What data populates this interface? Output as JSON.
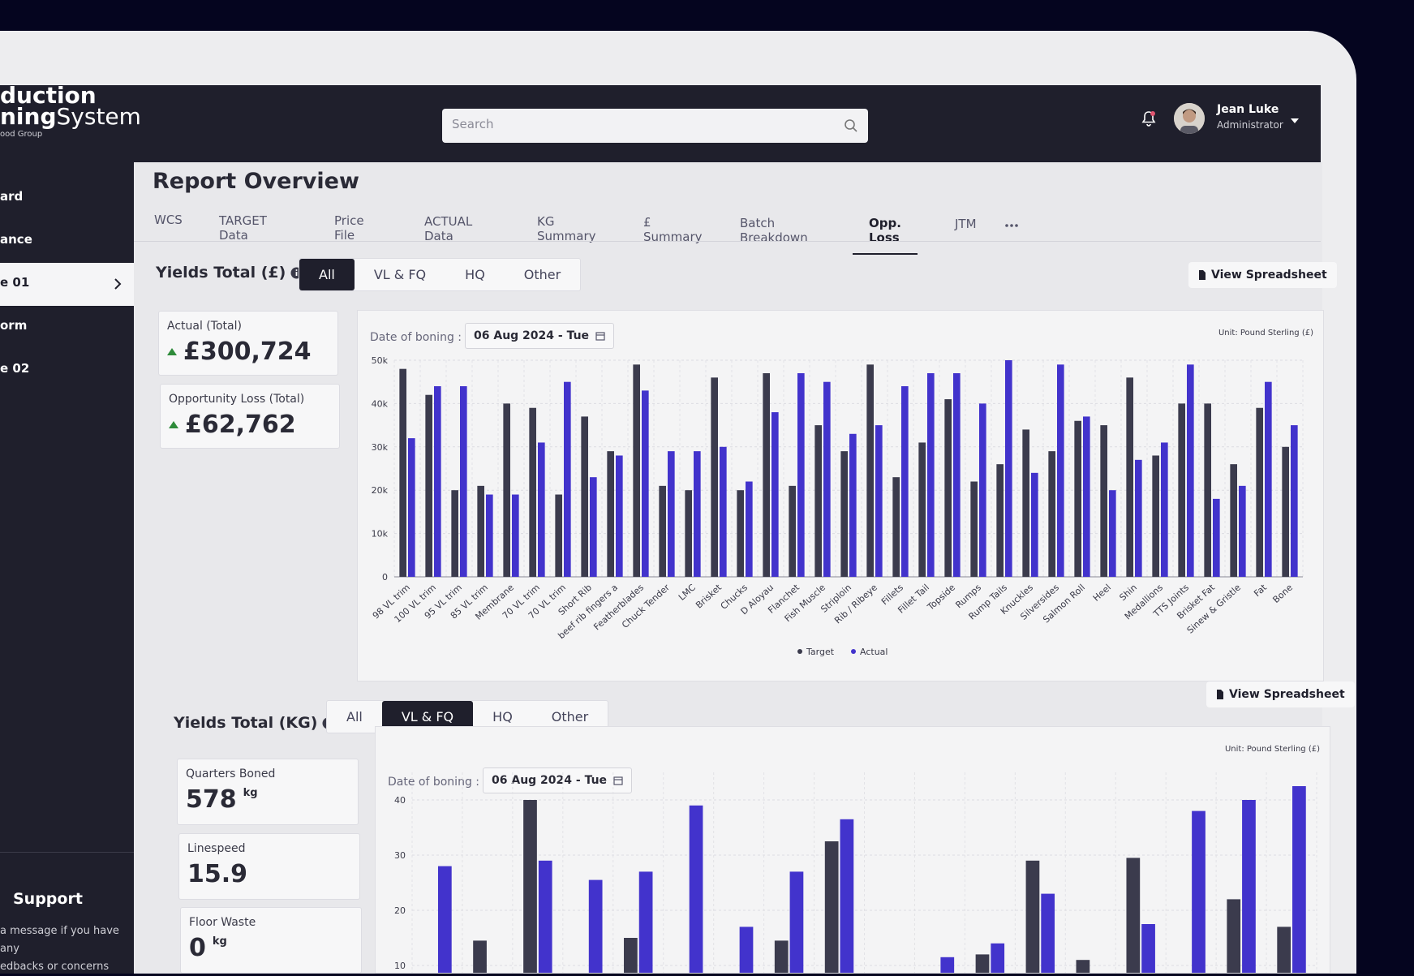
{
  "brand": {
    "line1": "duction",
    "line2a": "ning",
    "line2b": "System",
    "line3": "ood Group"
  },
  "search_placeholder": "Search",
  "user": {
    "name": "Jean Luke",
    "role": "Administrator"
  },
  "sidebar": {
    "items": [
      "ard",
      "ance",
      "e 01",
      "orm",
      "e 02"
    ],
    "active": 2
  },
  "support": {
    "title": "Support",
    "lines": [
      "a message if you have any",
      "edbacks or concerns"
    ]
  },
  "page_title": "Report Overview",
  "tabs": {
    "items": [
      "WCS",
      "TARGET Data",
      "Price File",
      "ACTUAL Data",
      "KG Summary",
      "£ Summary",
      "Batch Breakdown",
      "Opp. Loss",
      "JTM"
    ],
    "active": 7
  },
  "sections": [
    {
      "title": "Yields Total (£)",
      "filters": [
        "All",
        "VL & FQ",
        "HQ",
        "Other"
      ],
      "active_filter": 0,
      "button": "View Spreadsheet",
      "cards": [
        {
          "label": "Actual (Total)",
          "value": "£300,724",
          "trend": "up"
        },
        {
          "label": "Opportunity Loss (Total)",
          "value": "£62,762",
          "trend": "up"
        }
      ]
    },
    {
      "title": "Yields Total (KG)",
      "filters": [
        "All",
        "VL & FQ",
        "HQ",
        "Other"
      ],
      "active_filter": 1,
      "button": "View Spreadsheet",
      "cards": [
        {
          "label": "Quarters Boned",
          "value": "578",
          "unit": "kg"
        },
        {
          "label": "Linespeed",
          "value": "15.9"
        },
        {
          "label": "Floor Waste",
          "value": "0",
          "unit": "kg"
        }
      ]
    }
  ],
  "chart_data": [
    {
      "type": "bar",
      "date_label": "Date of boning :",
      "date": "06 Aug 2024 - Tue",
      "unit_label": "Unit: Pound Sterling (£)",
      "categories": [
        "98 VL trim",
        "100 VL trim",
        "95 VL trim",
        "85 VL trim",
        "Membrane",
        "70 VL trim",
        "70 VL trim",
        "Short Rib",
        "beef rib fingers a",
        "Featherblades",
        "Chuck Tender",
        "LMC",
        "Brisket",
        "Chucks",
        "D Aloyau",
        "Flanchet",
        "Fish Muscle",
        "Striploin",
        "Rib / Ribeye",
        "Fillets",
        "Fillet Tail",
        "Topside",
        "Rumps",
        "Rump Tails",
        "Knuckles",
        "Silversides",
        "Salmon Roll",
        "Heel",
        "Shin",
        "Medallions",
        "TTS Joints",
        "Brisket Fat",
        "Sinew & Gristle",
        "Fat",
        "Bone"
      ],
      "series": [
        {
          "name": "Target",
          "color": "#3b3b4d",
          "values": [
            48000,
            42000,
            20000,
            21000,
            40000,
            39000,
            19000,
            37000,
            29000,
            49000,
            21000,
            20000,
            46000,
            20000,
            47000,
            21000,
            35000,
            29000,
            49000,
            23000,
            31000,
            41000,
            22000,
            26000,
            34000,
            29000,
            36000,
            35000,
            46000,
            28000,
            40000,
            40000,
            26000,
            39000,
            30000
          ]
        },
        {
          "name": "Actual",
          "color": "#4233cc",
          "values": [
            32000,
            44000,
            44000,
            19000,
            19000,
            31000,
            45000,
            23000,
            28000,
            43000,
            29000,
            29000,
            30000,
            22000,
            38000,
            47000,
            45000,
            33000,
            35000,
            44000,
            47000,
            47000,
            40000,
            50000,
            24000,
            49000,
            37000,
            20000,
            27000,
            31000,
            49000,
            18000,
            21000,
            45000,
            35000
          ]
        }
      ],
      "ylim": [
        0,
        50000
      ],
      "yticks": [
        0,
        {
          "value": 10000,
          "label": "10k"
        },
        {
          "value": 20000,
          "label": "20k"
        },
        {
          "value": 30000,
          "label": "30k"
        },
        {
          "value": 40000,
          "label": "40k"
        },
        {
          "value": 50000,
          "label": "50k"
        }
      ],
      "grid": true,
      "legend": "bottom"
    },
    {
      "type": "bar",
      "date_label": "Date of boning :",
      "date": "06 Aug 2024 - Tue",
      "unit_label": "Unit: Pound Sterling (£)",
      "categories": [
        null,
        null,
        null,
        null,
        null,
        null,
        null,
        null,
        null,
        null,
        null,
        null,
        null,
        null,
        null,
        null,
        null,
        null
      ],
      "series": [
        {
          "color": "#3b3b4d",
          "values": [
            0,
            14.5,
            40,
            0,
            15,
            0,
            0,
            14.5,
            32.5,
            0,
            0,
            12,
            29,
            11,
            29.5,
            0,
            22,
            17
          ]
        },
        {
          "color": "#4233cc",
          "values": [
            28,
            0,
            29,
            25.5,
            27,
            39,
            17,
            27,
            36.5,
            0,
            11.5,
            14,
            23,
            0,
            17.5,
            38,
            40,
            42.5
          ]
        }
      ],
      "ylim": [
        0,
        45
      ],
      "yticks": [
        10,
        20,
        30,
        40
      ],
      "grid": true
    }
  ]
}
